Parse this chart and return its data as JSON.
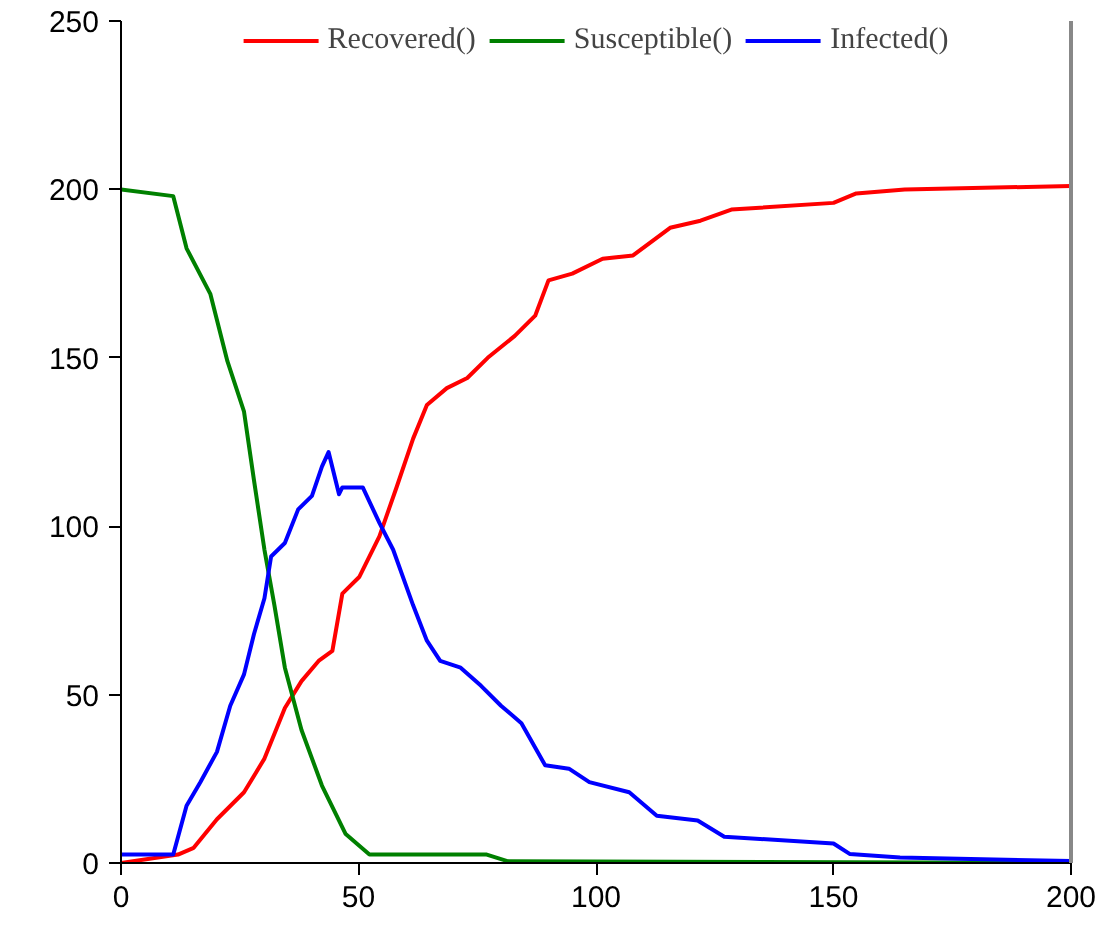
{
  "chart_data": {
    "type": "line",
    "xlim": [
      0,
      200
    ],
    "ylim": [
      0,
      250
    ],
    "xticks": [
      0,
      50,
      100,
      150,
      200
    ],
    "yticks": [
      0,
      50,
      100,
      150,
      200,
      250
    ],
    "grid": false,
    "legend": "top",
    "line_style": "solid",
    "marker": "none",
    "series": [
      {
        "name": "Recovered()",
        "color": "#ff0000",
        "x": [
          0,
          12,
          15.3,
          20.2,
          25.9,
          30.2,
          34.5,
          38,
          41.6,
          44.5,
          46.6,
          50.2,
          54.4,
          58,
          61.5,
          64.4,
          68.6,
          72.9,
          77.2,
          82.9,
          87.2,
          90,
          95,
          101.4,
          107.8,
          115.6,
          122,
          128.5,
          150,
          154.8,
          165,
          200
        ],
        "values": [
          0,
          2.5,
          4.5,
          13,
          21,
          31,
          46,
          54,
          60,
          63,
          80,
          85,
          97,
          111.5,
          126,
          136,
          141,
          144,
          150,
          156.5,
          162.5,
          173,
          175,
          179.4,
          180.4,
          188.6,
          190.7,
          194,
          196,
          198.8,
          200,
          201
        ]
      },
      {
        "name": "Susceptible()",
        "color": "#008000",
        "x": [
          0,
          11,
          13.8,
          18.8,
          22.4,
          25.9,
          28,
          30.2,
          32.3,
          34.5,
          38,
          42.3,
          47.3,
          52.3,
          77,
          81.5,
          200
        ],
        "values": [
          200,
          198,
          182.5,
          169,
          149,
          134,
          113.6,
          93,
          76.5,
          58,
          39.5,
          23,
          8.6,
          2.5,
          2.5,
          0.5,
          0
        ]
      },
      {
        "name": "Infected()",
        "color": "#0000ff",
        "x": [
          0,
          11,
          13.8,
          16.7,
          20.2,
          23,
          25.9,
          28,
          30.2,
          31.6,
          34.5,
          37.3,
          40.2,
          42.3,
          43.7,
          45.9,
          46.6,
          50.9,
          54.4,
          57.3,
          61.5,
          64.4,
          67.2,
          71.5,
          75.8,
          80,
          84.3,
          89.3,
          94.3,
          98.6,
          107,
          112.8,
          121.4,
          127,
          150,
          153.4,
          164,
          200
        ],
        "values": [
          2.5,
          2.5,
          17,
          24,
          33,
          46.7,
          56,
          68,
          78.6,
          91,
          95,
          105,
          109,
          117.7,
          122,
          109.5,
          111.5,
          111.5,
          101,
          93,
          76.5,
          66,
          60,
          58,
          52.6,
          46.7,
          41.5,
          29,
          28,
          24,
          21,
          14,
          12.6,
          7.8,
          5.8,
          2.7,
          1.6,
          0.6
        ]
      }
    ]
  }
}
